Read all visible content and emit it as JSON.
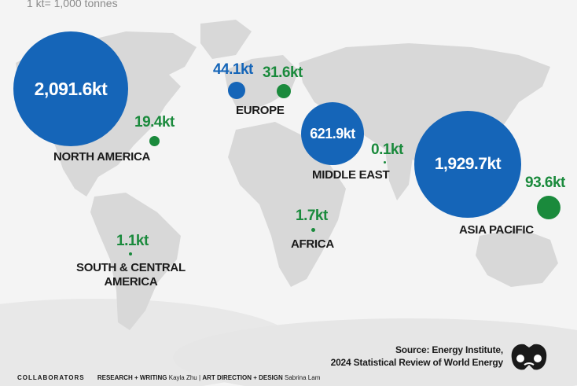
{
  "unit_note": "1 kt= 1,000 tonnes",
  "colors": {
    "blue": "#1565b8",
    "green": "#1a8a3c",
    "land": "#d9d9d9",
    "background": "#f3f3f3"
  },
  "regions": [
    {
      "id": "north-america",
      "name": "NORTH AMERICA",
      "blue_value": "2,091.6kt",
      "blue_kt": 2091.6,
      "green_value": "19.4kt",
      "green_kt": 19.4
    },
    {
      "id": "europe",
      "name": "EUROPE",
      "blue_value": "44.1kt",
      "blue_kt": 44.1,
      "green_value": "31.6kt",
      "green_kt": 31.6
    },
    {
      "id": "middle-east",
      "name": "MIDDLE EAST",
      "blue_value": "621.9kt",
      "blue_kt": 621.9,
      "green_value": "0.1kt",
      "green_kt": 0.1
    },
    {
      "id": "asia-pacific",
      "name": "ASIA PACIFIC",
      "blue_value": "1,929.7kt",
      "blue_kt": 1929.7,
      "green_value": "93.6kt",
      "green_kt": 93.6
    },
    {
      "id": "africa",
      "name": "AFRICA",
      "green_value": "1.7kt",
      "green_kt": 1.7
    },
    {
      "id": "south-central-america",
      "name_line1": "SOUTH & CENTRAL",
      "name_line2": "AMERICA",
      "green_value": "1.1kt",
      "green_kt": 1.1
    }
  ],
  "source": {
    "line1": "Source: Energy Institute,",
    "line2": "2024 Statistical Review of World Energy"
  },
  "credits": {
    "collaborators": "COLLABORATORS",
    "research_label": "RESEARCH + WRITING",
    "research_name": "Kayla Zhu",
    "separator": "|",
    "art_label": "ART DIRECTION + DESIGN",
    "art_name": "Sabrina Lam"
  },
  "logo_icon": "binoculars-logo-icon"
}
